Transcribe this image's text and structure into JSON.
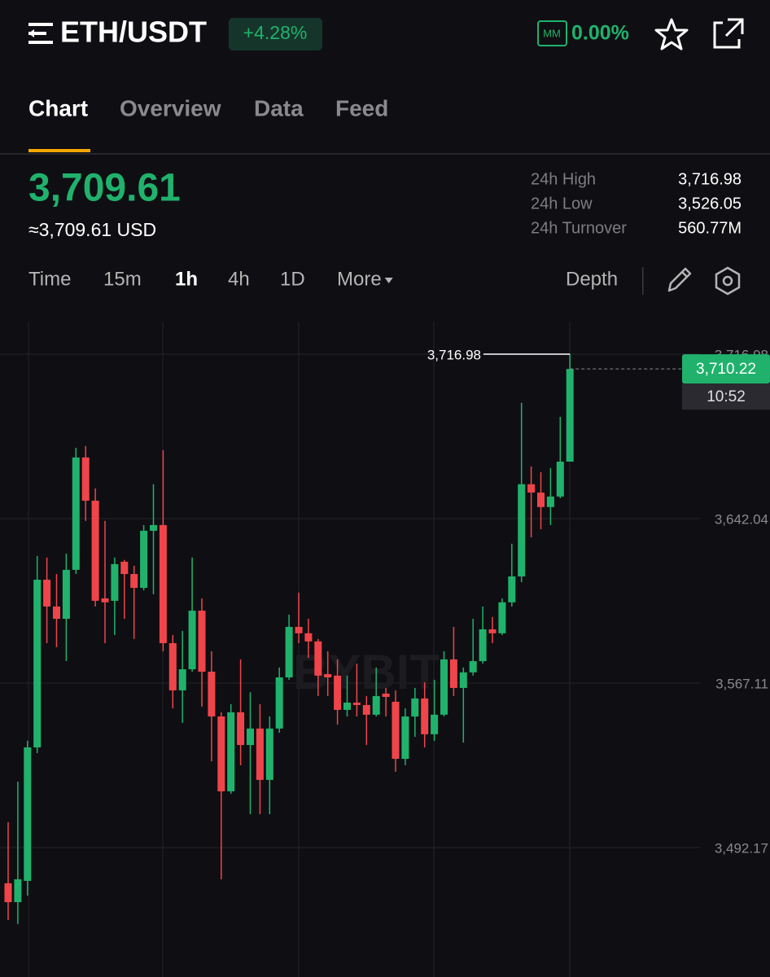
{
  "header": {
    "pair": "ETH/USDT",
    "change": "+4.28%",
    "mm_badge": "MM",
    "mm_value": "0.00%"
  },
  "tabs": [
    "Chart",
    "Overview",
    "Data",
    "Feed"
  ],
  "active_tab": 0,
  "price": {
    "last": "3,709.61",
    "usd": "≈3,709.61 USD"
  },
  "stats": [
    {
      "label": "24h High",
      "value": "3,716.98"
    },
    {
      "label": "24h Low",
      "value": "3,526.05"
    },
    {
      "label": "24h Turnover",
      "value": "560.77M"
    }
  ],
  "toolbar": {
    "intervals": [
      "Time",
      "15m",
      "1h",
      "4h",
      "1D",
      "More"
    ],
    "active_interval": 2,
    "depth": "Depth"
  },
  "chart_data": {
    "type": "candlestick",
    "watermark": "BYBIT",
    "up_color": "#20b26c",
    "down_color": "#ef454a",
    "grid": true,
    "ylim": [
      3433.2,
      3731.8
    ],
    "yticks": [
      {
        "value": 3492.17,
        "label": "3,492.17"
      },
      {
        "value": 3567.11,
        "label": "3,567.11"
      },
      {
        "value": 3642.04,
        "label": "3,642.04"
      },
      {
        "value": 3716.98,
        "label": "3,716.98"
      }
    ],
    "open": [
      3475.9,
      3467.3,
      3477.0,
      3537.8,
      3614.2,
      3602.0,
      3596.4,
      3618.7,
      3669.9,
      3650.2,
      3605.7,
      3604.6,
      3622.4,
      3616.8,
      3610.5,
      3636.5,
      3639.1,
      3585.3,
      3563.8,
      3573.4,
      3600.1,
      3572.3,
      3551.9,
      3517.8,
      3553.8,
      3538.9,
      3546.4,
      3523.0,
      3546.4,
      3569.7,
      3592.7,
      3589.8,
      3586.1,
      3571.2,
      3570.5,
      3554.9,
      3558.2,
      3557.1,
      3552.7,
      3562.3,
      3558.6,
      3532.6,
      3551.9,
      3560.1,
      3543.8,
      3552.7,
      3577.9,
      3564.9,
      3572.0,
      3577.1,
      3591.6,
      3589.8,
      3603.9,
      3615.7,
      3657.7,
      3653.9,
      3647.3,
      3652.1,
      3668.0
    ],
    "high": [
      3503.7,
      3522.2,
      3540.8,
      3625.0,
      3624.3,
      3616.8,
      3626.1,
      3674.3,
      3675.1,
      3655.8,
      3641.0,
      3624.3,
      3623.2,
      3620.6,
      3639.1,
      3657.7,
      3673.2,
      3589.0,
      3590.9,
      3624.3,
      3605.7,
      3581.6,
      3553.8,
      3557.5,
      3577.9,
      3563.0,
      3557.5,
      3551.9,
      3574.2,
      3598.3,
      3608.3,
      3596.4,
      3587.2,
      3581.6,
      3577.9,
      3570.5,
      3576.0,
      3561.2,
      3574.2,
      3564.9,
      3563.8,
      3555.6,
      3564.9,
      3567.5,
      3568.6,
      3581.6,
      3592.7,
      3574.2,
      3596.4,
      3602.0,
      3597.2,
      3605.7,
      3630.6,
      3694.8,
      3665.8,
      3663.2,
      3665.1,
      3688.4,
      3716.98
    ],
    "low": [
      3459.2,
      3457.3,
      3470.3,
      3535.2,
      3585.3,
      3583.5,
      3577.1,
      3616.8,
      3641.0,
      3602.0,
      3585.3,
      3589.0,
      3596.4,
      3587.2,
      3609.4,
      3607.6,
      3581.6,
      3555.6,
      3549.0,
      3572.3,
      3556.4,
      3531.5,
      3477.7,
      3516.7,
      3529.7,
      3507.4,
      3507.4,
      3507.4,
      3544.5,
      3568.6,
      3585.3,
      3578.6,
      3561.2,
      3561.2,
      3548.2,
      3551.9,
      3551.9,
      3538.9,
      3551.9,
      3551.9,
      3526.7,
      3529.7,
      3542.6,
      3537.8,
      3540.8,
      3551.9,
      3561.2,
      3540.0,
      3570.5,
      3576.0,
      3585.3,
      3589.0,
      3602.0,
      3613.1,
      3633.5,
      3637.2,
      3639.1,
      3651.3,
      3668.0
    ],
    "close": [
      3467.3,
      3477.7,
      3537.8,
      3614.2,
      3602.0,
      3596.4,
      3618.7,
      3669.9,
      3650.2,
      3604.6,
      3603.9,
      3621.3,
      3616.8,
      3610.5,
      3636.5,
      3639.1,
      3585.3,
      3563.8,
      3573.4,
      3600.1,
      3572.3,
      3551.9,
      3517.8,
      3553.8,
      3538.9,
      3546.4,
      3523.0,
      3546.4,
      3569.7,
      3592.7,
      3589.8,
      3586.1,
      3570.5,
      3569.7,
      3554.9,
      3558.2,
      3557.1,
      3552.7,
      3561.2,
      3560.8,
      3532.6,
      3551.9,
      3560.1,
      3543.8,
      3552.7,
      3577.9,
      3564.9,
      3572.0,
      3577.1,
      3591.6,
      3589.8,
      3603.9,
      3615.7,
      3657.7,
      3653.9,
      3647.3,
      3652.1,
      3668.0,
      3710.22
    ],
    "high_marker": {
      "value": 3716.98,
      "label": "3,716.98"
    },
    "current_price": {
      "value": 3710.22,
      "label": "3,710.22"
    },
    "countdown": "10:52"
  }
}
